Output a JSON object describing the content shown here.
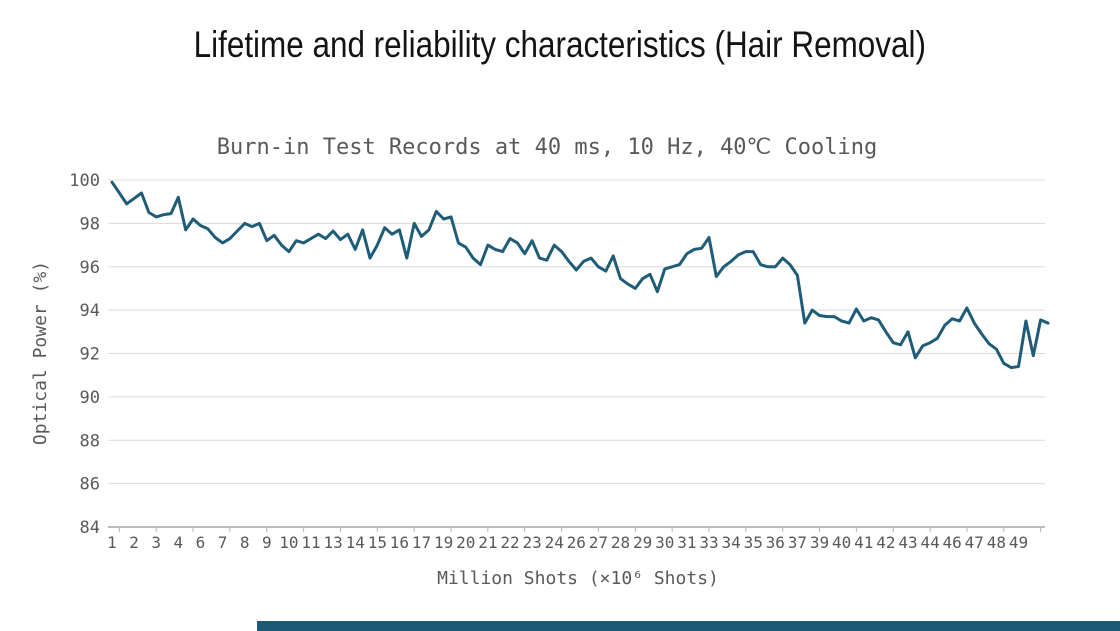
{
  "page": {
    "title": "Lifetime and reliability characteristics (Hair Removal)"
  },
  "chart_data": {
    "type": "line",
    "title": "Burn-in Test Records at 40 ms, 10 Hz, 40℃ Cooling",
    "xlabel": "Million Shots (×10⁶ Shots)",
    "ylabel": "Optical Power (%)",
    "ylim": [
      84,
      100
    ],
    "ytick_step": 2,
    "grid": "horizontal",
    "legend": "none",
    "colors": {
      "line": "#1F5C78",
      "gridline": "#DCDCDC",
      "axis_line": "#A6A6A6",
      "tick_mark": "#B3B3B3",
      "tick_text": "#595959",
      "subtitle_text": "#595959",
      "title_text": "#141414",
      "scrollbar_thumb": "#1B5A74"
    },
    "y_tick_labels": [
      "100",
      "98",
      "96",
      "94",
      "92",
      "90",
      "88",
      "86",
      "84"
    ],
    "x_tick_labels": [
      "1",
      "2",
      "3",
      "4",
      "6",
      "7",
      "8",
      "9",
      "10",
      "11",
      "13",
      "14",
      "15",
      "16",
      "17",
      "19",
      "20",
      "21",
      "22",
      "23",
      "24",
      "26",
      "27",
      "28",
      "29",
      "30",
      "31",
      "33",
      "34",
      "35",
      "36",
      "37",
      "39",
      "40",
      "41",
      "42",
      "43",
      "44",
      "46",
      "47",
      "48",
      "49"
    ],
    "x_label_every_n_points": 3,
    "x_tick_mark_every_n_points": 5,
    "series": [
      {
        "name": "Optical Power (%)",
        "values": [
          99.9,
          99.4,
          98.9,
          99.15,
          99.4,
          98.5,
          98.3,
          98.4,
          98.45,
          99.2,
          97.7,
          98.2,
          97.9,
          97.75,
          97.35,
          97.1,
          97.3,
          97.65,
          98.0,
          97.85,
          98.0,
          97.2,
          97.45,
          97.0,
          96.7,
          97.2,
          97.1,
          97.3,
          97.5,
          97.3,
          97.65,
          97.25,
          97.5,
          96.8,
          97.7,
          96.4,
          97.0,
          97.8,
          97.5,
          97.7,
          96.4,
          98.0,
          97.4,
          97.7,
          98.55,
          98.2,
          98.3,
          97.1,
          96.9,
          96.4,
          96.1,
          97.0,
          96.8,
          96.7,
          97.3,
          97.1,
          96.6,
          97.2,
          96.4,
          96.3,
          97.0,
          96.7,
          96.25,
          95.85,
          96.25,
          96.4,
          96.0,
          95.8,
          96.5,
          95.45,
          95.2,
          95.0,
          95.45,
          95.65,
          94.85,
          95.9,
          96.0,
          96.1,
          96.6,
          96.8,
          96.85,
          97.35,
          95.55,
          96.0,
          96.25,
          96.55,
          96.7,
          96.7,
          96.1,
          96.0,
          96.0,
          96.4,
          96.1,
          95.6,
          93.4,
          94.0,
          93.75,
          93.7,
          93.7,
          93.5,
          93.4,
          94.05,
          93.5,
          93.65,
          93.55,
          93.0,
          92.5,
          92.4,
          93.0,
          91.8,
          92.35,
          92.5,
          92.7,
          93.3,
          93.6,
          93.5,
          94.1,
          93.4,
          92.9,
          92.45,
          92.2,
          91.55,
          91.35,
          91.4,
          93.5,
          91.9,
          93.55,
          93.4
        ]
      }
    ]
  }
}
